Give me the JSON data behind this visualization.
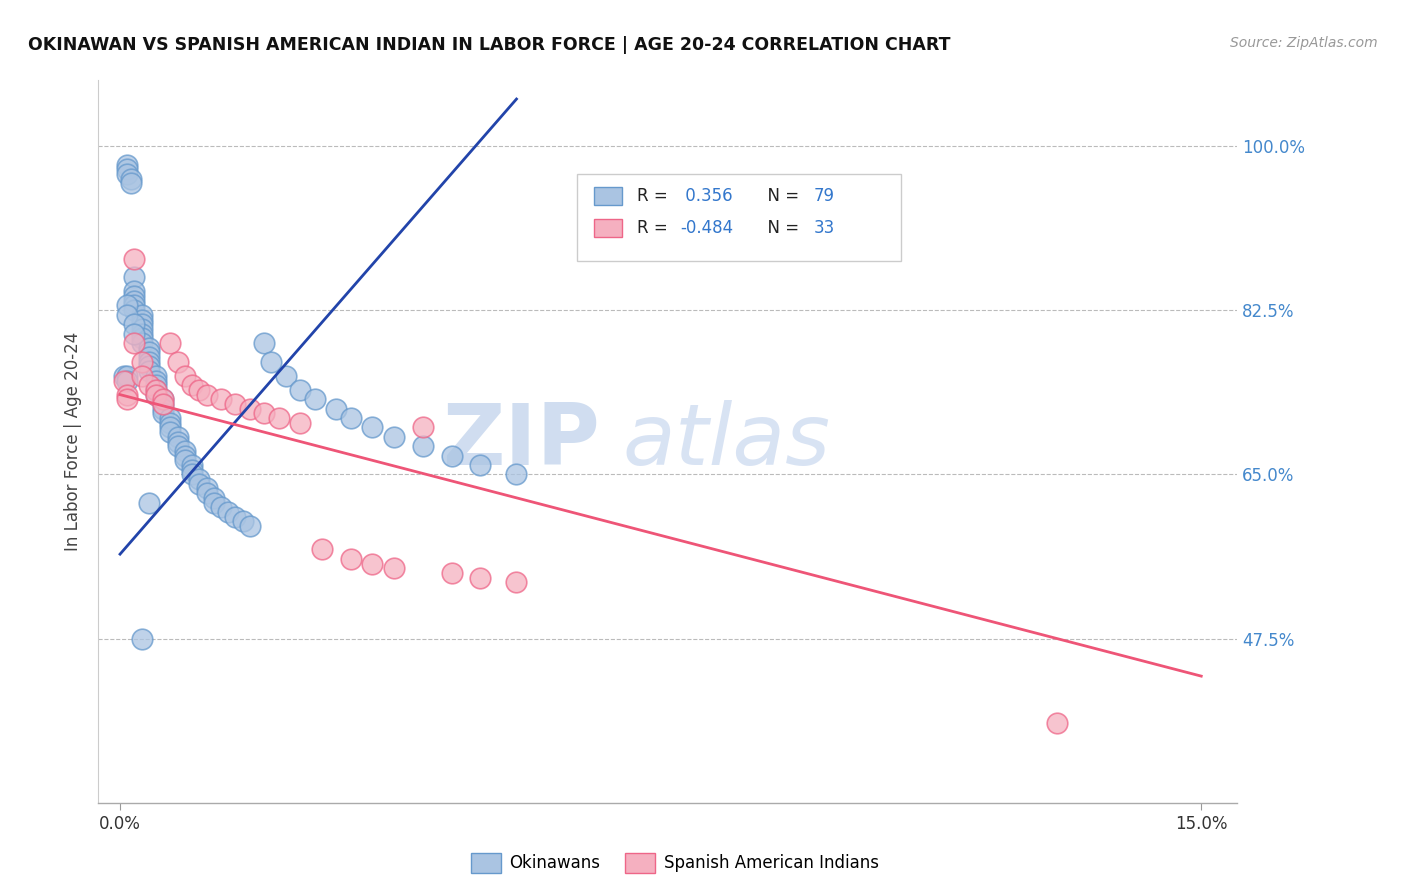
{
  "title": "OKINAWAN VS SPANISH AMERICAN INDIAN IN LABOR FORCE | AGE 20-24 CORRELATION CHART",
  "source": "Source: ZipAtlas.com",
  "ylabel": "In Labor Force | Age 20-24",
  "xlim": [
    -0.003,
    0.155
  ],
  "ylim": [
    0.3,
    1.07
  ],
  "yticks": [
    0.475,
    0.65,
    0.825,
    1.0
  ],
  "ytick_labels": [
    "47.5%",
    "65.0%",
    "82.5%",
    "100.0%"
  ],
  "okinawan_R": 0.356,
  "okinawan_N": 79,
  "spanish_R": -0.484,
  "spanish_N": 33,
  "okinawan_color": "#aac4e2",
  "spanish_color": "#f5b0c0",
  "okinawan_edge_color": "#6699cc",
  "spanish_edge_color": "#ee6688",
  "okinawan_line_color": "#2244aa",
  "spanish_line_color": "#ee5577",
  "background_color": "#ffffff",
  "grid_color": "#bbbbbb",
  "watermark_zip_color": "#c8d8ee",
  "watermark_atlas_color": "#ccdaf0",
  "ok_line_x0": 0.0,
  "ok_line_y0": 0.565,
  "ok_line_x1": 0.055,
  "ok_line_y1": 1.05,
  "sp_line_x0": 0.0,
  "sp_line_y0": 0.735,
  "sp_line_x1": 0.15,
  "sp_line_y1": 0.435,
  "okinawan_x": [
    0.0005,
    0.001,
    0.001,
    0.001,
    0.001,
    0.001,
    0.0015,
    0.0015,
    0.002,
    0.002,
    0.002,
    0.002,
    0.002,
    0.002,
    0.003,
    0.003,
    0.003,
    0.003,
    0.003,
    0.003,
    0.003,
    0.004,
    0.004,
    0.004,
    0.004,
    0.004,
    0.004,
    0.005,
    0.005,
    0.005,
    0.005,
    0.005,
    0.006,
    0.006,
    0.006,
    0.006,
    0.007,
    0.007,
    0.007,
    0.007,
    0.008,
    0.008,
    0.008,
    0.009,
    0.009,
    0.009,
    0.01,
    0.01,
    0.01,
    0.011,
    0.011,
    0.012,
    0.012,
    0.013,
    0.013,
    0.014,
    0.015,
    0.016,
    0.017,
    0.018,
    0.02,
    0.021,
    0.023,
    0.025,
    0.027,
    0.03,
    0.032,
    0.035,
    0.038,
    0.042,
    0.046,
    0.05,
    0.055,
    0.001,
    0.001,
    0.002,
    0.002,
    0.003,
    0.004
  ],
  "okinawan_y": [
    0.755,
    0.98,
    0.975,
    0.97,
    0.755,
    0.75,
    0.965,
    0.96,
    0.86,
    0.845,
    0.84,
    0.835,
    0.83,
    0.825,
    0.82,
    0.815,
    0.81,
    0.805,
    0.8,
    0.795,
    0.79,
    0.785,
    0.78,
    0.775,
    0.77,
    0.765,
    0.76,
    0.755,
    0.75,
    0.745,
    0.74,
    0.735,
    0.73,
    0.725,
    0.72,
    0.715,
    0.71,
    0.705,
    0.7,
    0.695,
    0.69,
    0.685,
    0.68,
    0.675,
    0.67,
    0.665,
    0.66,
    0.655,
    0.65,
    0.645,
    0.64,
    0.635,
    0.63,
    0.625,
    0.62,
    0.615,
    0.61,
    0.605,
    0.6,
    0.595,
    0.79,
    0.77,
    0.755,
    0.74,
    0.73,
    0.72,
    0.71,
    0.7,
    0.69,
    0.68,
    0.67,
    0.66,
    0.65,
    0.83,
    0.82,
    0.81,
    0.8,
    0.475,
    0.62
  ],
  "spanish_x": [
    0.0005,
    0.001,
    0.001,
    0.002,
    0.002,
    0.003,
    0.003,
    0.004,
    0.005,
    0.005,
    0.006,
    0.006,
    0.007,
    0.008,
    0.009,
    0.01,
    0.011,
    0.012,
    0.014,
    0.016,
    0.018,
    0.02,
    0.022,
    0.025,
    0.028,
    0.032,
    0.035,
    0.038,
    0.042,
    0.046,
    0.05,
    0.055,
    0.13
  ],
  "spanish_y": [
    0.75,
    0.735,
    0.73,
    0.88,
    0.79,
    0.77,
    0.755,
    0.745,
    0.74,
    0.735,
    0.73,
    0.725,
    0.79,
    0.77,
    0.755,
    0.745,
    0.74,
    0.735,
    0.73,
    0.725,
    0.72,
    0.715,
    0.71,
    0.705,
    0.57,
    0.56,
    0.555,
    0.55,
    0.7,
    0.545,
    0.54,
    0.535,
    0.385
  ]
}
